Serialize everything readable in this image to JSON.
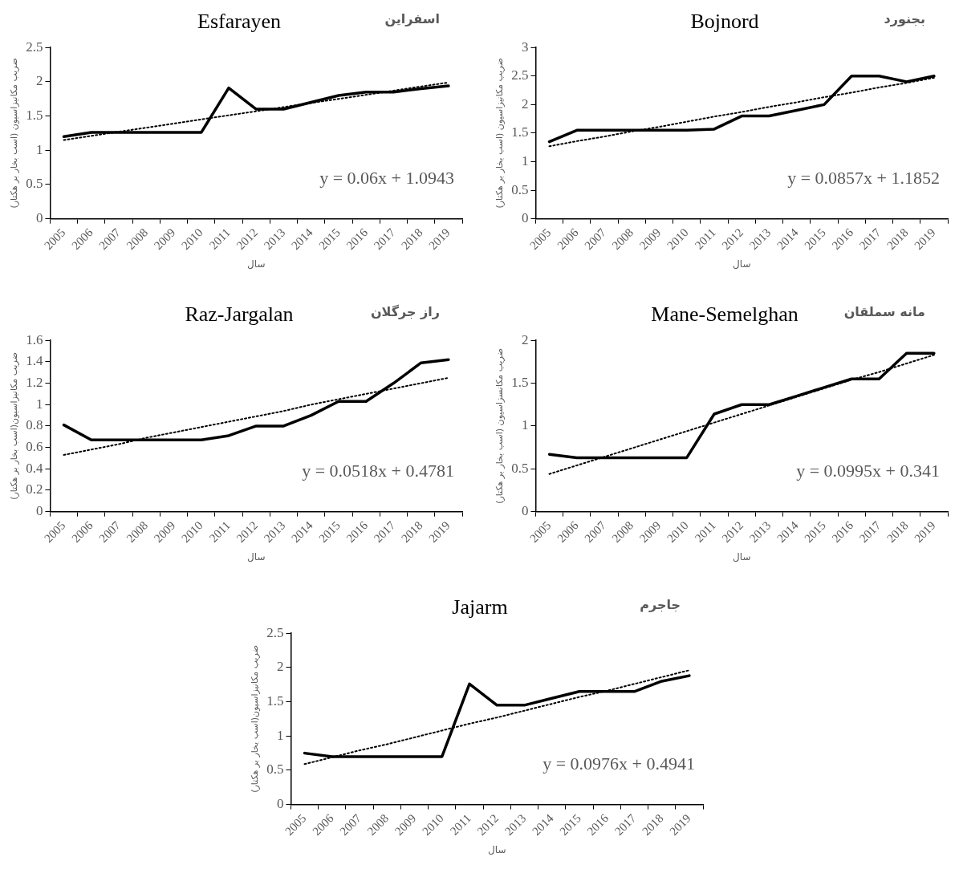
{
  "chart_data": [
    {
      "type": "line",
      "title": "Esfarayen",
      "subtitle": "اسفراین",
      "xlabel": "سال",
      "ylabel": "ضریب مکانیزاسیون (اسب بخار بر هکتار)",
      "annotations": [
        "y = 0.06x + 1.0943"
      ],
      "categories": [
        "2005",
        "2006",
        "2007",
        "2008",
        "2009",
        "2010",
        "2011",
        "2012",
        "2013",
        "2014",
        "2015",
        "2016",
        "2017",
        "2018",
        "2019"
      ],
      "ylim": [
        0,
        2.5
      ],
      "yticks": [
        0,
        0.5,
        1,
        1.5,
        2,
        2.5
      ],
      "grid": false,
      "legend": false,
      "marker": "none",
      "series": [
        {
          "color": "#000000",
          "line_style": "solid",
          "values": [
            1.2,
            1.26,
            1.26,
            1.26,
            1.26,
            1.26,
            1.91,
            1.6,
            1.6,
            1.7,
            1.8,
            1.85,
            1.85,
            1.9,
            1.94
          ]
        },
        {
          "type": "line",
          "color": "#000000",
          "line_style": "dotted",
          "values": [
            1.15,
            1.21,
            1.27,
            1.33,
            1.39,
            1.45,
            1.51,
            1.57,
            1.63,
            1.69,
            1.75,
            1.81,
            1.87,
            1.93,
            1.99
          ]
        }
      ]
    },
    {
      "type": "line",
      "title": "Bojnord",
      "subtitle": "بجنورد",
      "xlabel": "سال",
      "ylabel": "ضریب مکانیزاسیون (اسب بخار بر هکتار)",
      "annotations": [
        "y = 0.0857x + 1.1852"
      ],
      "categories": [
        "2005",
        "2006",
        "2007",
        "2008",
        "2009",
        "2010",
        "2011",
        "2012",
        "2013",
        "2014",
        "2015",
        "2016",
        "2017",
        "2018",
        "2019"
      ],
      "ylim": [
        0,
        3
      ],
      "yticks": [
        0,
        0.5,
        1,
        1.5,
        2,
        2.5,
        3
      ],
      "grid": false,
      "legend": false,
      "marker": "none",
      "series": [
        {
          "color": "#000000",
          "line_style": "solid",
          "values": [
            1.35,
            1.55,
            1.55,
            1.55,
            1.55,
            1.55,
            1.57,
            1.8,
            1.8,
            1.9,
            2.0,
            2.5,
            2.5,
            2.4,
            2.5
          ]
        },
        {
          "type": "line",
          "color": "#000000",
          "line_style": "dotted",
          "values": [
            1.27,
            1.36,
            1.44,
            1.53,
            1.61,
            1.7,
            1.79,
            1.87,
            1.96,
            2.04,
            2.13,
            2.21,
            2.3,
            2.38,
            2.47
          ]
        }
      ]
    },
    {
      "type": "line",
      "title": "Raz-Jargalan",
      "subtitle": "راز جرگلان",
      "xlabel": "سال",
      "ylabel": "ضریب مکانیزاسیون(اسب بخار بر هکتار)",
      "annotations": [
        "y = 0.0518x + 0.4781"
      ],
      "categories": [
        "2005",
        "2006",
        "2007",
        "2008",
        "2009",
        "2010",
        "2011",
        "2012",
        "2013",
        "2014",
        "2015",
        "2016",
        "2017",
        "2018",
        "2019"
      ],
      "ylim": [
        0,
        1.6
      ],
      "yticks": [
        0,
        0.2,
        0.4,
        0.6,
        0.8,
        1,
        1.2,
        1.4,
        1.6
      ],
      "grid": false,
      "legend": false,
      "marker": "none",
      "series": [
        {
          "color": "#000000",
          "line_style": "solid",
          "values": [
            0.81,
            0.67,
            0.67,
            0.67,
            0.67,
            0.67,
            0.71,
            0.8,
            0.8,
            0.9,
            1.03,
            1.03,
            1.2,
            1.39,
            1.42
          ]
        },
        {
          "type": "line",
          "color": "#000000",
          "line_style": "dotted",
          "values": [
            0.53,
            0.58,
            0.63,
            0.69,
            0.74,
            0.79,
            0.84,
            0.89,
            0.94,
            1.0,
            1.05,
            1.1,
            1.15,
            1.2,
            1.25
          ]
        }
      ]
    },
    {
      "type": "line",
      "title": "Mane-Semelghan",
      "subtitle": "مانه سملقان",
      "xlabel": "سال",
      "ylabel": "ضریب مکانسزاسیون (اسب بخار بر هکتار)",
      "annotations": [
        "y = 0.0995x + 0.341"
      ],
      "categories": [
        "2005",
        "2006",
        "2007",
        "2008",
        "2009",
        "2010",
        "2011",
        "2012",
        "2013",
        "2014",
        "2015",
        "2016",
        "2017",
        "2018",
        "2019"
      ],
      "ylim": [
        0,
        2
      ],
      "yticks": [
        0,
        0.5,
        1,
        1.5,
        2
      ],
      "grid": false,
      "legend": false,
      "marker": "none",
      "series": [
        {
          "color": "#000000",
          "line_style": "solid",
          "values": [
            0.67,
            0.63,
            0.63,
            0.63,
            0.63,
            0.63,
            1.14,
            1.25,
            1.25,
            1.35,
            1.45,
            1.55,
            1.55,
            1.85,
            1.85
          ]
        },
        {
          "type": "line",
          "color": "#000000",
          "line_style": "dotted",
          "values": [
            0.44,
            0.54,
            0.64,
            0.74,
            0.84,
            0.94,
            1.04,
            1.14,
            1.24,
            1.34,
            1.44,
            1.54,
            1.63,
            1.73,
            1.83
          ]
        }
      ]
    },
    {
      "type": "line",
      "title": "Jajarm",
      "subtitle": "جاجرم",
      "xlabel": "سال",
      "ylabel": "ضریب مکانیزاسیون(اسب بخار بر هکتار)",
      "annotations": [
        "y = 0.0976x + 0.4941"
      ],
      "categories": [
        "2005",
        "2006",
        "2007",
        "2008",
        "2009",
        "2010",
        "2011",
        "2012",
        "2013",
        "2014",
        "2015",
        "2016",
        "2017",
        "2018",
        "2019"
      ],
      "ylim": [
        0,
        2.5
      ],
      "yticks": [
        0,
        0.5,
        1,
        1.5,
        2,
        2.5
      ],
      "grid": false,
      "legend": false,
      "marker": "none",
      "series": [
        {
          "color": "#000000",
          "line_style": "solid",
          "values": [
            0.75,
            0.7,
            0.7,
            0.7,
            0.7,
            0.7,
            1.76,
            1.45,
            1.45,
            1.55,
            1.65,
            1.65,
            1.65,
            1.8,
            1.88
          ]
        },
        {
          "type": "line",
          "color": "#000000",
          "line_style": "dotted",
          "values": [
            0.59,
            0.69,
            0.79,
            0.88,
            0.98,
            1.08,
            1.18,
            1.27,
            1.37,
            1.47,
            1.57,
            1.66,
            1.76,
            1.86,
            1.96
          ]
        }
      ]
    }
  ]
}
